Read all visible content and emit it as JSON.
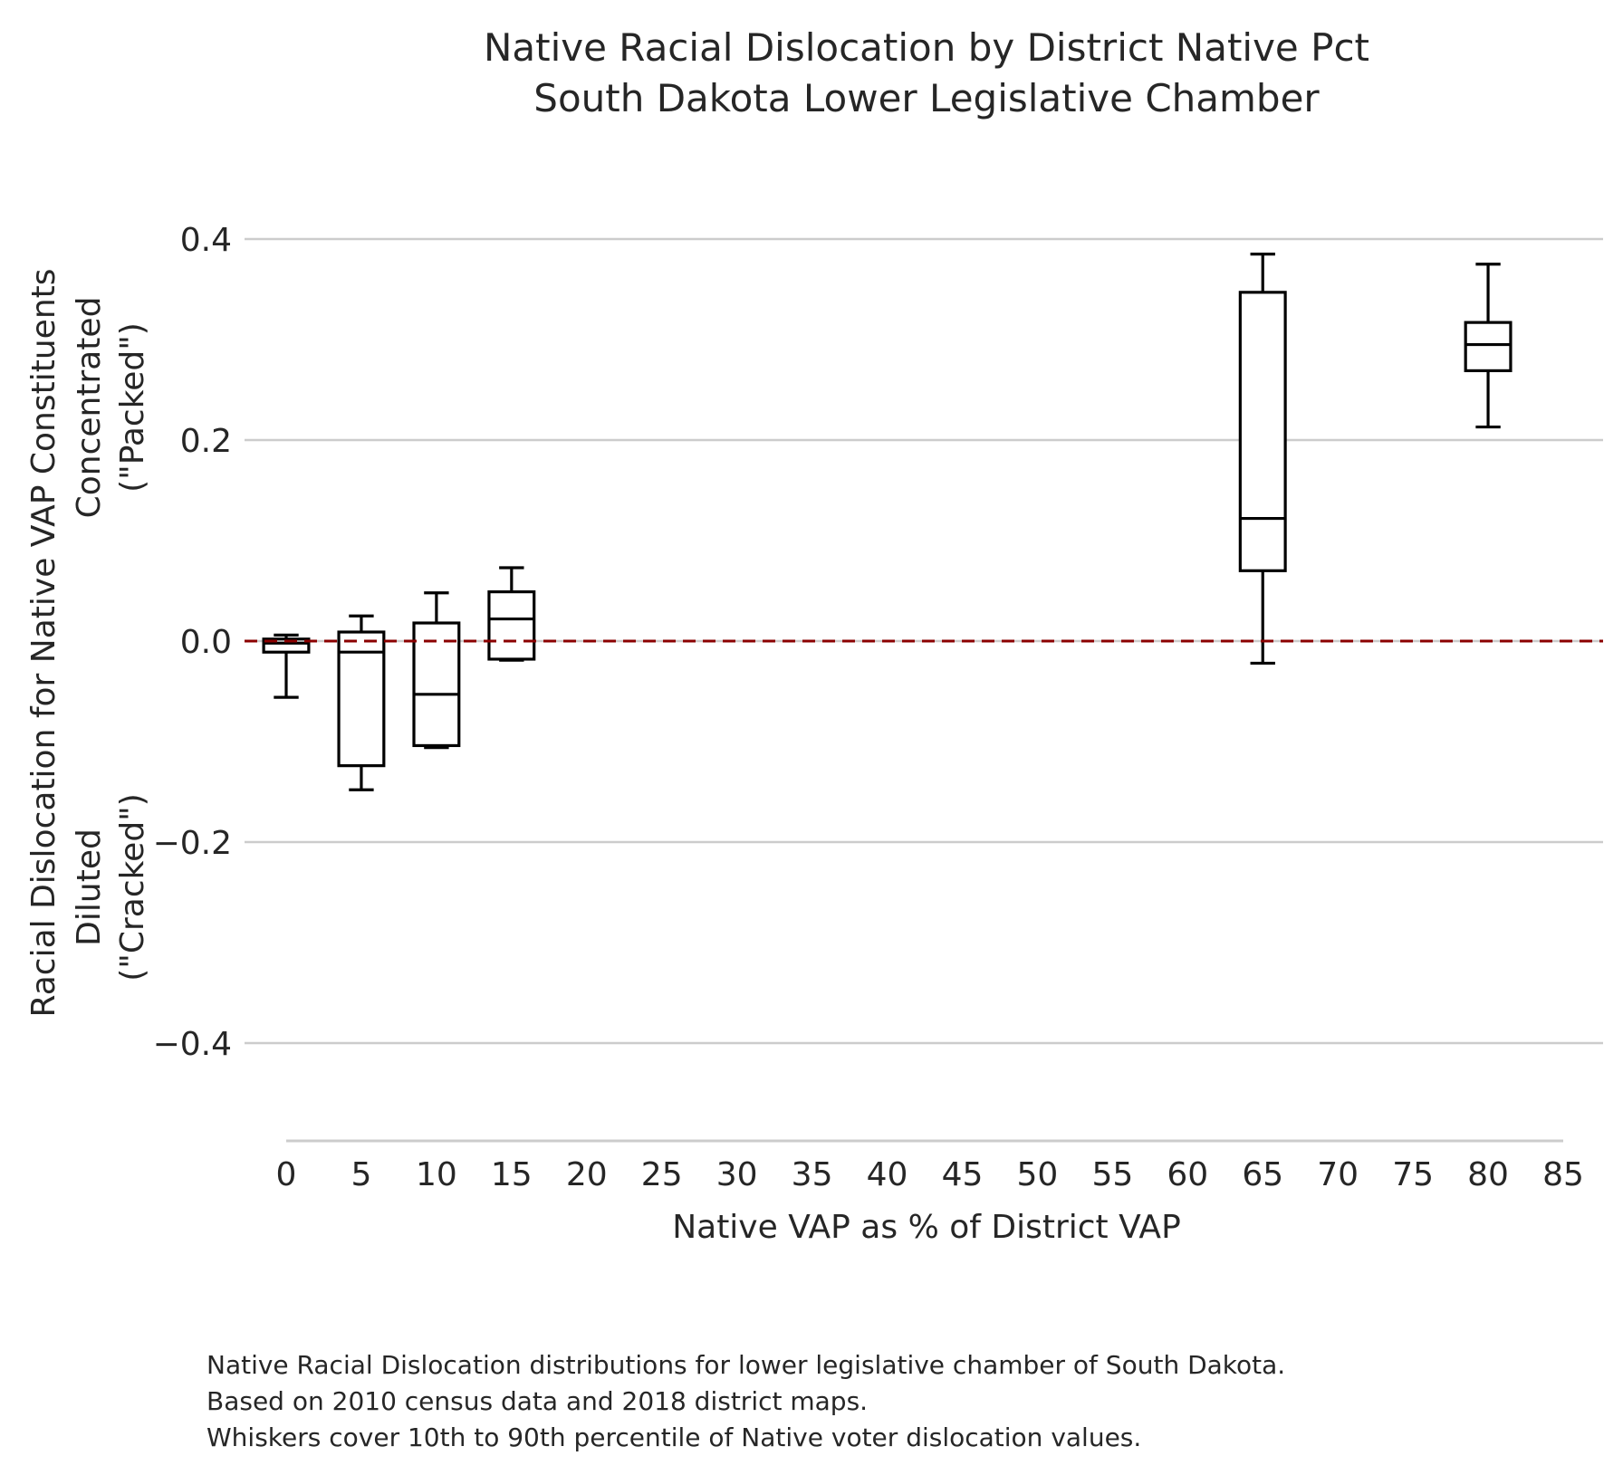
{
  "chart_data": {
    "type": "box",
    "title": [
      "Native Racial Dislocation by District Native Pct",
      "South Dakota Lower Legislative Chamber"
    ],
    "xlabel": "Native VAP as % of District VAP",
    "ylabel": [
      "Racial Dislocation for Native VAP Constituents"
    ],
    "y_annotations": {
      "positive": [
        "Concentrated",
        "(\"Packed\")"
      ],
      "negative": [
        "Diluted",
        "(\"Cracked\")"
      ]
    },
    "xlim": [
      -1.5,
      85.5
    ],
    "ylim": [
      -0.5,
      0.48
    ],
    "x_ticks": [
      0,
      5,
      10,
      15,
      20,
      25,
      30,
      35,
      40,
      45,
      50,
      55,
      60,
      65,
      70,
      75,
      80,
      85
    ],
    "y_ticks": [
      {
        "value": 0.4,
        "label": "0.4"
      },
      {
        "value": 0.2,
        "label": "0.2"
      },
      {
        "value": 0.0,
        "label": "0.0"
      },
      {
        "value": -0.2,
        "label": "−0.2"
      },
      {
        "value": -0.4,
        "label": "−0.4"
      }
    ],
    "grid": true,
    "reference_line": {
      "y": 0.0,
      "color": "#8b0000",
      "style": "dashed"
    },
    "box_width": 3,
    "boxes": [
      {
        "x": 0,
        "whislo": -0.056,
        "q1": -0.011,
        "med": -0.002,
        "q3": 0.002,
        "whishi": 0.006
      },
      {
        "x": 5,
        "whislo": -0.148,
        "q1": -0.124,
        "med": -0.011,
        "q3": 0.009,
        "whishi": 0.025
      },
      {
        "x": 10,
        "whislo": -0.106,
        "q1": -0.104,
        "med": -0.053,
        "q3": 0.018,
        "whishi": 0.048
      },
      {
        "x": 15,
        "whislo": -0.019,
        "q1": -0.018,
        "med": 0.022,
        "q3": 0.049,
        "whishi": 0.073
      },
      {
        "x": 65,
        "whislo": -0.022,
        "q1": 0.07,
        "med": 0.122,
        "q3": 0.347,
        "whishi": 0.385
      },
      {
        "x": 80,
        "whislo": 0.213,
        "q1": 0.269,
        "med": 0.295,
        "q3": 0.317,
        "whishi": 0.375
      }
    ]
  },
  "caption": [
    "Native Racial Dislocation distributions for lower legislative chamber of South Dakota.",
    "Based on 2010 census data and 2018 district maps.",
    "Whiskers cover 10th to 90th percentile of Native voter dislocation values."
  ]
}
